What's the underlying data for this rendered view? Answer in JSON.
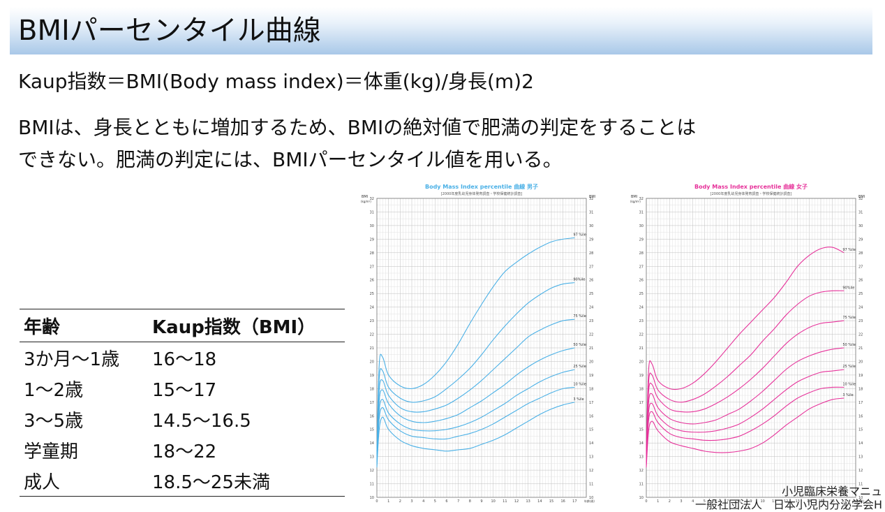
{
  "slide": {
    "title": "BMIパーセンタイル曲線",
    "formula": "Kaup指数＝BMI(Body mass index)＝体重(kg)/身長(m)2",
    "paragraph_line1": "BMIは、身長とともに増加するため、BMIの絶対値で肥満の判定をすることは",
    "paragraph_line2": "できない。肥満の判定には、BMIパーセンタイル値を用いる。"
  },
  "table": {
    "headers": [
      "年齢",
      "Kaup指数（BMI）"
    ],
    "rows": [
      [
        "3か月〜1歳",
        "16〜18"
      ],
      [
        "1〜2歳",
        "15〜17"
      ],
      [
        "3〜5歳",
        "14.5〜16.5"
      ],
      [
        "学童期",
        "18〜22"
      ],
      [
        "成人",
        "18.5〜25未満"
      ]
    ]
  },
  "source": {
    "line1": "小児臨床栄養マニュ",
    "line2": "一般社団法人　日本小児内分泌学会H"
  },
  "colors": {
    "boys": "#4ab0e6",
    "girls": "#e6329a",
    "grid": "#c8c8c8"
  },
  "chart_data": [
    {
      "type": "line",
      "title": "Body Mass Index percentile 曲線 男子",
      "subtitle": "[2000年度乳幼児身体発育調査・学校保健統計調査]",
      "ylabel": "BMI",
      "yunit": "(kg/m²)",
      "xlabel": "年齢(歳)",
      "xlim": [
        0,
        18
      ],
      "ylim": [
        10,
        32
      ],
      "x_ticks": [
        0,
        1,
        2,
        3,
        4,
        5,
        6,
        7,
        8,
        9,
        10,
        11,
        12,
        13,
        14,
        15,
        16,
        17
      ],
      "y_ticks": [
        10,
        11,
        12,
        13,
        14,
        15,
        16,
        17,
        18,
        19,
        20,
        21,
        22,
        23,
        24,
        25,
        26,
        27,
        28,
        29,
        30,
        31,
        32
      ],
      "x": [
        0,
        0.2,
        0.5,
        1,
        2,
        3,
        4,
        5,
        6,
        7,
        8,
        9,
        10,
        11,
        12,
        13,
        14,
        15,
        16,
        17
      ],
      "series": [
        {
          "name": "97 %ile",
          "values": [
            13.4,
            19.8,
            20.3,
            19.0,
            18.2,
            18.0,
            18.3,
            19.0,
            20.0,
            21.3,
            22.8,
            24.2,
            25.5,
            26.6,
            27.3,
            27.9,
            28.4,
            28.8,
            29.0,
            29.1
          ]
        },
        {
          "name": "90%ile",
          "values": [
            13.2,
            18.8,
            19.3,
            18.1,
            17.3,
            17.0,
            17.1,
            17.4,
            18.0,
            18.7,
            19.5,
            20.5,
            21.6,
            22.6,
            23.5,
            24.3,
            24.9,
            25.4,
            25.7,
            25.8
          ]
        },
        {
          "name": "75 %ile",
          "values": [
            13.0,
            17.9,
            18.6,
            17.5,
            16.6,
            16.3,
            16.3,
            16.5,
            16.8,
            17.3,
            17.9,
            18.6,
            19.4,
            20.2,
            21.0,
            21.8,
            22.3,
            22.7,
            23.0,
            23.1
          ]
        },
        {
          "name": "50 %ile",
          "values": [
            12.8,
            17.1,
            17.9,
            16.9,
            16.0,
            15.6,
            15.5,
            15.6,
            15.8,
            16.1,
            16.6,
            17.1,
            17.7,
            18.3,
            19.0,
            19.6,
            20.1,
            20.5,
            20.8,
            21.0
          ]
        },
        {
          "name": "25 %ile",
          "values": [
            12.6,
            16.4,
            17.2,
            16.2,
            15.4,
            15.0,
            14.9,
            14.9,
            15.0,
            15.2,
            15.5,
            15.9,
            16.4,
            16.9,
            17.5,
            18.0,
            18.5,
            18.9,
            19.2,
            19.4
          ]
        },
        {
          "name": "10 %ile",
          "values": [
            12.4,
            15.8,
            16.6,
            15.7,
            14.9,
            14.5,
            14.4,
            14.3,
            14.3,
            14.5,
            14.7,
            15.0,
            15.4,
            15.9,
            16.4,
            16.9,
            17.3,
            17.7,
            18.0,
            18.1
          ]
        },
        {
          "name": "3 %ile",
          "values": [
            12.2,
            15.0,
            15.9,
            15.0,
            14.2,
            13.8,
            13.6,
            13.5,
            13.4,
            13.5,
            13.6,
            13.9,
            14.2,
            14.6,
            15.1,
            15.6,
            16.1,
            16.5,
            16.8,
            17.0
          ]
        }
      ]
    },
    {
      "type": "line",
      "title": "Body Mass Index percentile 曲線 女子",
      "subtitle": "[2000年度乳幼児身体発育調査・学校保健統計調査]",
      "ylabel": "BMI",
      "yunit": "(kg/m²)",
      "xlabel": "年齢(歳)",
      "xlim": [
        0,
        18
      ],
      "ylim": [
        10,
        32
      ],
      "x_ticks": [
        0,
        1,
        2,
        3,
        4,
        5,
        6,
        7,
        8,
        9,
        10,
        11,
        12,
        13,
        14,
        15,
        16,
        17
      ],
      "y_ticks": [
        10,
        11,
        12,
        13,
        14,
        15,
        16,
        17,
        18,
        19,
        20,
        21,
        22,
        23,
        24,
        25,
        26,
        27,
        28,
        29,
        30,
        31,
        32
      ],
      "x": [
        0,
        0.2,
        0.5,
        1,
        2,
        3,
        4,
        5,
        6,
        7,
        8,
        9,
        10,
        11,
        12,
        13,
        14,
        15,
        16,
        17
      ],
      "series": [
        {
          "name": "97 %ile",
          "values": [
            13.4,
            19.4,
            19.8,
            18.6,
            18.0,
            18.0,
            18.4,
            19.1,
            20.0,
            21.0,
            22.0,
            22.9,
            23.8,
            24.7,
            25.8,
            27.0,
            27.8,
            28.3,
            28.4,
            28.0
          ]
        },
        {
          "name": "90%ile",
          "values": [
            13.2,
            18.5,
            19.0,
            17.9,
            17.2,
            17.0,
            17.2,
            17.6,
            18.2,
            18.9,
            19.7,
            20.5,
            21.5,
            22.4,
            23.4,
            24.2,
            24.8,
            25.1,
            25.2,
            25.2
          ]
        },
        {
          "name": "75 %ile",
          "values": [
            13.0,
            17.8,
            18.3,
            17.3,
            16.5,
            16.3,
            16.3,
            16.5,
            16.9,
            17.4,
            18.0,
            18.7,
            19.5,
            20.4,
            21.3,
            22.0,
            22.5,
            22.8,
            22.9,
            23.0
          ]
        },
        {
          "name": "50 %ile",
          "values": [
            12.8,
            17.0,
            17.6,
            16.6,
            15.8,
            15.5,
            15.4,
            15.5,
            15.7,
            16.1,
            16.5,
            17.1,
            17.8,
            18.6,
            19.4,
            20.0,
            20.4,
            20.7,
            20.9,
            21.0
          ]
        },
        {
          "name": "25 %ile",
          "values": [
            12.6,
            16.3,
            16.9,
            16.0,
            15.2,
            14.9,
            14.8,
            14.8,
            14.9,
            15.1,
            15.4,
            15.9,
            16.5,
            17.2,
            17.9,
            18.5,
            18.9,
            19.2,
            19.3,
            19.4
          ]
        },
        {
          "name": "10 %ile",
          "values": [
            12.4,
            15.7,
            16.3,
            15.5,
            14.7,
            14.4,
            14.3,
            14.2,
            14.2,
            14.3,
            14.5,
            14.9,
            15.4,
            16.0,
            16.7,
            17.3,
            17.7,
            18.0,
            18.1,
            18.1
          ]
        },
        {
          "name": "3 %ile",
          "values": [
            12.2,
            14.9,
            15.6,
            14.9,
            14.1,
            13.8,
            13.6,
            13.4,
            13.3,
            13.3,
            13.4,
            13.6,
            14.0,
            14.6,
            15.3,
            15.9,
            16.5,
            16.9,
            17.2,
            17.3
          ]
        }
      ]
    }
  ]
}
